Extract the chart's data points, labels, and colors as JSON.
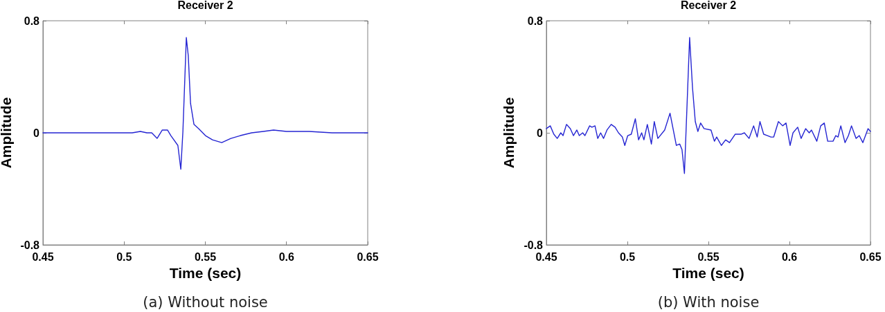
{
  "chart_data": [
    {
      "type": "line",
      "title": "Receiver 2",
      "xlabel": "Time (sec)",
      "ylabel": "Amplitude",
      "annotations": [
        "(a) Without noise"
      ],
      "color": "#2424d2",
      "xlim": [
        0.45,
        0.65
      ],
      "xticks": [
        0.45,
        0.5,
        0.55,
        0.6,
        0.65
      ],
      "ylim": [
        -0.8,
        0.8
      ],
      "yticks": [
        -0.8,
        0,
        0.8
      ],
      "x": [
        0.45,
        0.46,
        0.47,
        0.48,
        0.49,
        0.5,
        0.505,
        0.51,
        0.514,
        0.517,
        0.5203,
        0.5235,
        0.5267,
        0.5288,
        0.5331,
        0.5349,
        0.5362,
        0.5383,
        0.5395,
        0.5409,
        0.543,
        0.5459,
        0.5501,
        0.5544,
        0.5601,
        0.5657,
        0.5715,
        0.5785,
        0.5857,
        0.592,
        0.6,
        0.614,
        0.628,
        0.65
      ],
      "values": [
        0,
        0,
        0,
        0,
        0,
        0,
        0,
        0.01,
        0,
        0,
        -0.04,
        0.02,
        0.02,
        -0.02,
        -0.09,
        -0.26,
        0.01,
        0.68,
        0.55,
        0.21,
        0.06,
        0.03,
        -0.02,
        -0.05,
        -0.07,
        -0.04,
        -0.02,
        0,
        0.01,
        0.02,
        0.01,
        0.01,
        0,
        0
      ]
    },
    {
      "type": "line",
      "title": "Receiver 2",
      "xlabel": "Time (sec)",
      "ylabel": "Amplitude",
      "annotations": [
        "(b) With noise"
      ],
      "color": "#2424d2",
      "xlim": [
        0.45,
        0.65
      ],
      "xticks": [
        0.45,
        0.5,
        0.55,
        0.6,
        0.65
      ],
      "ylim": [
        -0.8,
        0.8
      ],
      "yticks": [
        -0.8,
        0,
        0.8
      ],
      "x": [
        0.45,
        0.4524,
        0.4546,
        0.4567,
        0.4589,
        0.4603,
        0.4624,
        0.4648,
        0.4667,
        0.4688,
        0.4703,
        0.4724,
        0.4738,
        0.4767,
        0.4781,
        0.48,
        0.4817,
        0.4835,
        0.4853,
        0.4874,
        0.49,
        0.4924,
        0.4945,
        0.4969,
        0.4984,
        0.5002,
        0.5024,
        0.5049,
        0.5069,
        0.5088,
        0.5102,
        0.5123,
        0.5148,
        0.5166,
        0.5188,
        0.523,
        0.5263,
        0.5302,
        0.5323,
        0.5337,
        0.5352,
        0.5384,
        0.5402,
        0.5419,
        0.5435,
        0.5452,
        0.5473,
        0.5516,
        0.5537,
        0.5551,
        0.558,
        0.5606,
        0.563,
        0.5665,
        0.5701,
        0.5722,
        0.5751,
        0.5779,
        0.5801,
        0.5818,
        0.5841,
        0.5865,
        0.5886,
        0.5903,
        0.5932,
        0.5958,
        0.5979,
        0.6004,
        0.6022,
        0.6051,
        0.6072,
        0.61,
        0.6122,
        0.6136,
        0.6169,
        0.6193,
        0.6215,
        0.6236,
        0.6269,
        0.6286,
        0.63,
        0.6317,
        0.6343,
        0.6364,
        0.6383,
        0.6411,
        0.6431,
        0.6453,
        0.6485,
        0.65
      ],
      "values": [
        0.03,
        0.05,
        -0.01,
        -0.04,
        0,
        -0.02,
        0.06,
        0.03,
        -0.02,
        0.02,
        -0.02,
        0,
        -0.02,
        0.05,
        0.04,
        0.05,
        -0.04,
        0,
        -0.04,
        0.02,
        0.06,
        0.04,
        0,
        -0.03,
        -0.09,
        -0.02,
        -0.01,
        0.1,
        -0.05,
        0,
        -0.05,
        0.06,
        -0.08,
        0.08,
        -0.04,
        0.02,
        0.14,
        -0.09,
        -0.08,
        -0.12,
        -0.29,
        0.68,
        0.32,
        0.08,
        0.01,
        0.07,
        0.03,
        0.02,
        -0.06,
        -0.03,
        -0.09,
        -0.05,
        -0.07,
        -0.01,
        -0.01,
        0,
        -0.04,
        0.05,
        -0.03,
        0.08,
        -0.01,
        -0.02,
        -0.03,
        -0.03,
        0.08,
        0.05,
        0.07,
        -0.09,
        0,
        0.04,
        -0.04,
        0.03,
        0,
        0.02,
        -0.06,
        0.05,
        0.07,
        -0.06,
        -0.06,
        -0.02,
        -0.03,
        0.05,
        -0.07,
        -0.02,
        0.05,
        -0.04,
        -0.02,
        -0.07,
        0.03,
        0.01
      ]
    }
  ]
}
